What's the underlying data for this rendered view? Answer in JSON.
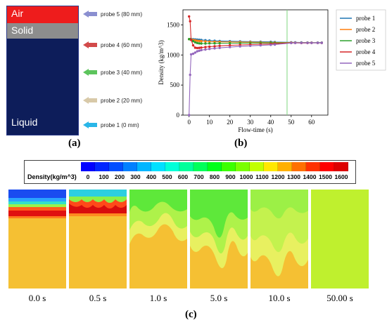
{
  "panel_a": {
    "layers": [
      {
        "label": "Air",
        "color": "#ee1c1c"
      },
      {
        "label": "Solid",
        "color": "#8d8d8d"
      },
      {
        "label": "Liquid",
        "color": "#0d1d5a"
      }
    ],
    "probes": [
      {
        "label": "probe 5 (80 mm)",
        "color": "#8a8fd0"
      },
      {
        "label": "probe 4 (60 mm)",
        "color": "#d24a4a"
      },
      {
        "label": "probe 3 (40 mm)",
        "color": "#5cc45c"
      },
      {
        "label": "probe 2 (20 mm)",
        "color": "#d8c9a8"
      },
      {
        "label": "probe 1 (0 mm)",
        "color": "#29b6e8"
      }
    ],
    "caption": "(a)"
  },
  "panel_b_caption": "(b)",
  "panel_c_caption": "(c)",
  "chart_data": [
    {
      "type": "line",
      "xlabel": "Flow-time (s)",
      "ylabel": "Density (kg/m^3)",
      "xlim": [
        -3,
        68
      ],
      "ylim": [
        0,
        1750
      ],
      "xticks": [
        0,
        10,
        20,
        30,
        40,
        50,
        60
      ],
      "yticks": [
        0,
        500,
        1000,
        1500
      ],
      "vline_x": 48,
      "vline_color": "#7fd67f",
      "legend_position": "outside-right",
      "series": [
        {
          "name": "probe 1",
          "color": "#1f77b4",
          "x": [
            0,
            0.5,
            1,
            2,
            3,
            4,
            5,
            6,
            8,
            10,
            12.5,
            15,
            20,
            25,
            30,
            35,
            40,
            42,
            50,
            52,
            55,
            58,
            60,
            63,
            65
          ],
          "y": [
            1262,
            1262,
            1262,
            1260,
            1258,
            1255,
            1252,
            1250,
            1245,
            1240,
            1235,
            1232,
            1228,
            1225,
            1222,
            1220,
            1218,
            1215,
            1210,
            1210,
            1208,
            1206,
            1205,
            1205,
            1205
          ]
        },
        {
          "name": "probe 2",
          "color": "#ff7f0e",
          "x": [
            0,
            0.5,
            1,
            2,
            3,
            4,
            5,
            6,
            8,
            10,
            12.5,
            15,
            20,
            25,
            30,
            35,
            40,
            42,
            50,
            52,
            55,
            58,
            60,
            63,
            65
          ],
          "y": [
            1262,
            1262,
            1258,
            1250,
            1242,
            1236,
            1232,
            1230,
            1225,
            1222,
            1220,
            1218,
            1216,
            1214,
            1212,
            1210,
            1208,
            1206,
            1205,
            1205,
            1204,
            1204,
            1204,
            1203,
            1203
          ]
        },
        {
          "name": "probe 3",
          "color": "#2ca02c",
          "x": [
            0,
            0.5,
            1,
            2,
            3,
            4,
            5,
            6,
            8,
            10,
            12.5,
            15,
            20,
            25,
            30,
            35,
            40,
            42,
            50,
            52,
            55,
            58,
            60,
            63,
            65
          ],
          "y": [
            1262,
            1262,
            1255,
            1230,
            1210,
            1198,
            1192,
            1190,
            1190,
            1192,
            1194,
            1195,
            1196,
            1197,
            1198,
            1199,
            1200,
            1200,
            1202,
            1202,
            1202,
            1202,
            1202,
            1202,
            1202
          ]
        },
        {
          "name": "probe 4",
          "color": "#d62728",
          "x": [
            0,
            0.5,
            1,
            2,
            3,
            4,
            5,
            6,
            8,
            10,
            12.5,
            15,
            20,
            25,
            30,
            35,
            40,
            42,
            50,
            52,
            55,
            58,
            60,
            63,
            65
          ],
          "y": [
            1640,
            1560,
            1250,
            1160,
            1120,
            1115,
            1118,
            1122,
            1130,
            1138,
            1145,
            1152,
            1160,
            1167,
            1173,
            1178,
            1183,
            1188,
            1200,
            1200,
            1198,
            1199,
            1200,
            1200,
            1200
          ]
        },
        {
          "name": "probe 5",
          "color": "#9467bd",
          "x": [
            0,
            0.5,
            1,
            2,
            3,
            4,
            5,
            6,
            8,
            10,
            12.5,
            15,
            20,
            25,
            30,
            35,
            40,
            42,
            50,
            52,
            55,
            58,
            60,
            63,
            65
          ],
          "y": [
            0,
            670,
            1010,
            1020,
            1040,
            1060,
            1070,
            1080,
            1090,
            1100,
            1110,
            1118,
            1130,
            1142,
            1152,
            1160,
            1168,
            1172,
            1198,
            1200,
            1200,
            1200,
            1200,
            1200,
            1200
          ]
        }
      ]
    },
    {
      "type": "heatmap",
      "title": "Density(kg/m^3)",
      "colorbar_ticks": [
        "0",
        "100",
        "200",
        "300",
        "400",
        "500",
        "600",
        "700",
        "800",
        "900",
        "1000",
        "1100",
        "1200",
        "1300",
        "1400",
        "1500",
        "1600"
      ],
      "colorbar_colors": [
        "#0000ff",
        "#0026ff",
        "#004eff",
        "#0080ff",
        "#00b6ff",
        "#00e0ff",
        "#00ffd8",
        "#00ff9a",
        "#00ff5a",
        "#00ff1a",
        "#3cff00",
        "#7aff00",
        "#c2ff00",
        "#ffe800",
        "#ffb000",
        "#ff7000",
        "#ff3200",
        "#ff0000",
        "#dd0000"
      ],
      "snapshots": [
        "0.0 s",
        "0.5 s",
        "1.0 s",
        "5.0 s",
        "10.0 s",
        "50.00 s"
      ]
    }
  ]
}
